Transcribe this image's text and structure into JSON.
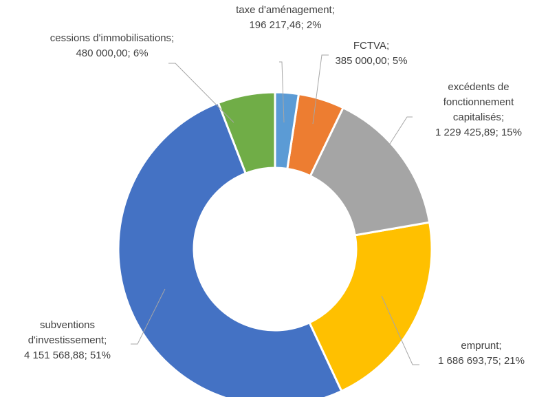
{
  "chart_data": {
    "type": "donut",
    "categories": [
      "taxe d'aménagement",
      "FCTVA",
      "excédents de fonctionnement capitalisés",
      "emprunt",
      "subventions d'investissement",
      "cessions d'immobilisations"
    ],
    "separator": ";",
    "values": [
      196217.46,
      385000,
      1229425.89,
      1686693.75,
      4151568.88,
      480000
    ],
    "value_labels": [
      "196 217,46",
      "385 000,00",
      "1 229 425,89",
      "1 686 693,75",
      "4 151 568,88",
      "480 000,00"
    ],
    "percentages": [
      2,
      5,
      15,
      21,
      51,
      6
    ],
    "percentage_labels": [
      "2%",
      "5%",
      "15%",
      "21%",
      "51%",
      "6%"
    ],
    "colors": [
      "#5b9bd5",
      "#ed7d31",
      "#a5a5a5",
      "#ffc000",
      "#4472c4",
      "#70ad47"
    ]
  }
}
